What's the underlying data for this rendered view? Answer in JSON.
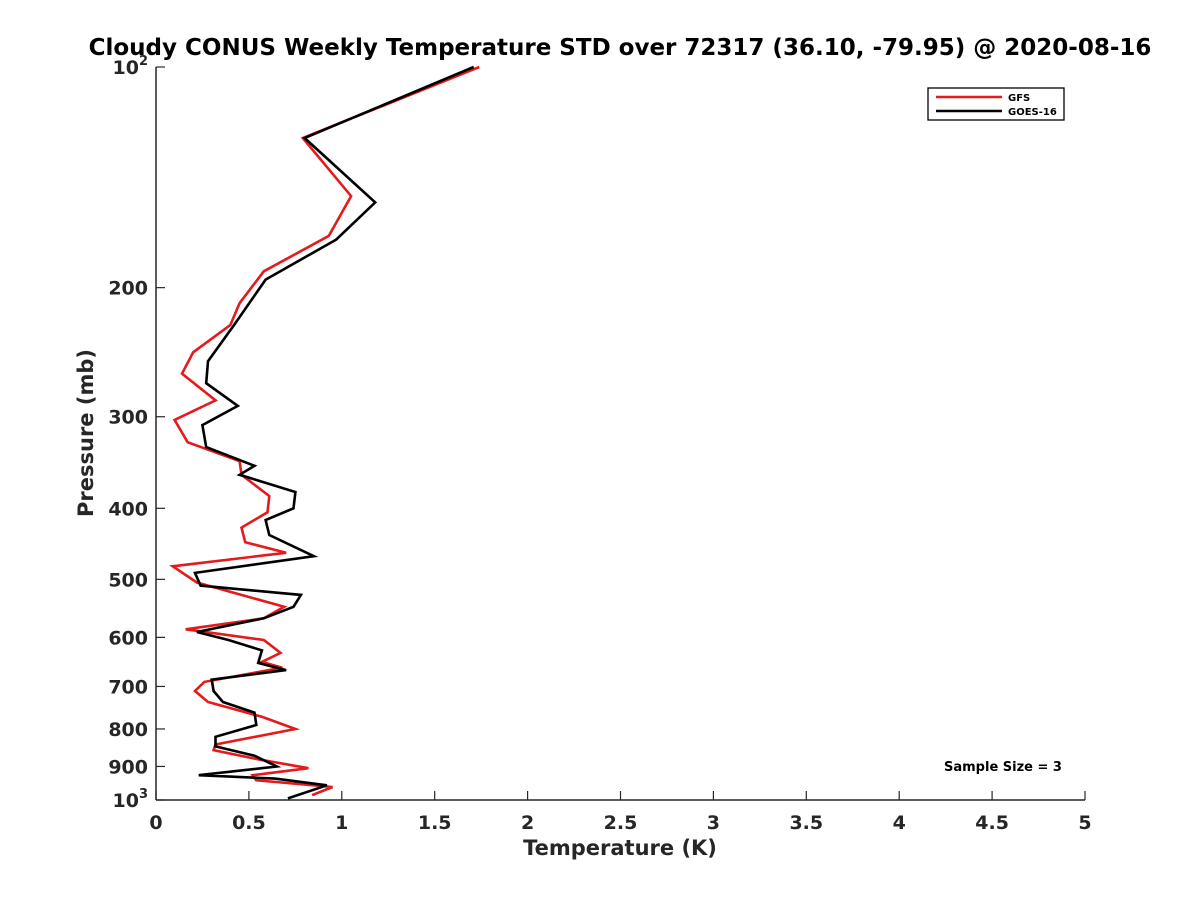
{
  "chart_data": {
    "type": "line",
    "title": "Cloudy CONUS Weekly Temperature STD over 72317 (36.10, -79.95) @ 2020-08-16",
    "xlabel": "Temperature (K)",
    "ylabel": "Pressure (mb)",
    "xlim": [
      0,
      5
    ],
    "ylim": [
      100,
      1000
    ],
    "y_scale": "log",
    "y_reversed": true,
    "grid": false,
    "legend_position": "top-right",
    "annotation": "Sample Size = 3",
    "x_ticks": [
      "0",
      "0.5",
      "1",
      "1.5",
      "2",
      "2.5",
      "3",
      "3.5",
      "4",
      "4.5",
      "5"
    ],
    "y_ticks": [
      {
        "value": 100,
        "label": "10",
        "sup": "2"
      },
      {
        "value": 200,
        "label": "200",
        "sup": ""
      },
      {
        "value": 300,
        "label": "300",
        "sup": ""
      },
      {
        "value": 400,
        "label": "400",
        "sup": ""
      },
      {
        "value": 500,
        "label": "500",
        "sup": ""
      },
      {
        "value": 600,
        "label": "600",
        "sup": ""
      },
      {
        "value": 700,
        "label": "700",
        "sup": ""
      },
      {
        "value": 800,
        "label": "800",
        "sup": ""
      },
      {
        "value": 900,
        "label": "900",
        "sup": ""
      },
      {
        "value": 1000,
        "label": "10",
        "sup": "3"
      }
    ],
    "series": [
      {
        "name": "GFS",
        "color": "#e41a1c",
        "points": [
          [
            1.74,
            100
          ],
          [
            0.79,
            125
          ],
          [
            1.05,
            150
          ],
          [
            0.93,
            170
          ],
          [
            0.58,
            190
          ],
          [
            0.45,
            210
          ],
          [
            0.4,
            225
          ],
          [
            0.2,
            245
          ],
          [
            0.14,
            262
          ],
          [
            0.32,
            285
          ],
          [
            0.1,
            303
          ],
          [
            0.17,
            325
          ],
          [
            0.45,
            345
          ],
          [
            0.46,
            360
          ],
          [
            0.61,
            385
          ],
          [
            0.6,
            405
          ],
          [
            0.46,
            425
          ],
          [
            0.48,
            445
          ],
          [
            0.7,
            460
          ],
          [
            0.09,
            480
          ],
          [
            0.22,
            505
          ],
          [
            0.69,
            545
          ],
          [
            0.58,
            565
          ],
          [
            0.16,
            585
          ],
          [
            0.58,
            605
          ],
          [
            0.67,
            630
          ],
          [
            0.57,
            648
          ],
          [
            0.68,
            660
          ],
          [
            0.26,
            690
          ],
          [
            0.21,
            710
          ],
          [
            0.28,
            735
          ],
          [
            0.57,
            770
          ],
          [
            0.75,
            800
          ],
          [
            0.32,
            840
          ],
          [
            0.31,
            855
          ],
          [
            0.55,
            880
          ],
          [
            0.82,
            905
          ],
          [
            0.52,
            925
          ],
          [
            0.54,
            940
          ],
          [
            0.95,
            960
          ],
          [
            0.84,
            985
          ]
        ]
      },
      {
        "name": "GOES-16",
        "color": "#000000",
        "points": [
          [
            1.71,
            100
          ],
          [
            0.8,
            125
          ],
          [
            1.18,
            153
          ],
          [
            0.97,
            172
          ],
          [
            0.59,
            195
          ],
          [
            0.42,
            225
          ],
          [
            0.28,
            252
          ],
          [
            0.27,
            270
          ],
          [
            0.44,
            290
          ],
          [
            0.25,
            308
          ],
          [
            0.27,
            330
          ],
          [
            0.53,
            350
          ],
          [
            0.45,
            360
          ],
          [
            0.75,
            380
          ],
          [
            0.74,
            400
          ],
          [
            0.59,
            415
          ],
          [
            0.61,
            435
          ],
          [
            0.85,
            465
          ],
          [
            0.21,
            490
          ],
          [
            0.24,
            510
          ],
          [
            0.78,
            525
          ],
          [
            0.74,
            545
          ],
          [
            0.58,
            565
          ],
          [
            0.22,
            590
          ],
          [
            0.39,
            605
          ],
          [
            0.57,
            625
          ],
          [
            0.55,
            650
          ],
          [
            0.7,
            665
          ],
          [
            0.3,
            685
          ],
          [
            0.31,
            710
          ],
          [
            0.36,
            735
          ],
          [
            0.53,
            760
          ],
          [
            0.54,
            790
          ],
          [
            0.32,
            820
          ],
          [
            0.32,
            845
          ],
          [
            0.53,
            870
          ],
          [
            0.65,
            900
          ],
          [
            0.23,
            925
          ],
          [
            0.64,
            935
          ],
          [
            0.92,
            955
          ],
          [
            0.71,
            995
          ]
        ]
      }
    ]
  }
}
